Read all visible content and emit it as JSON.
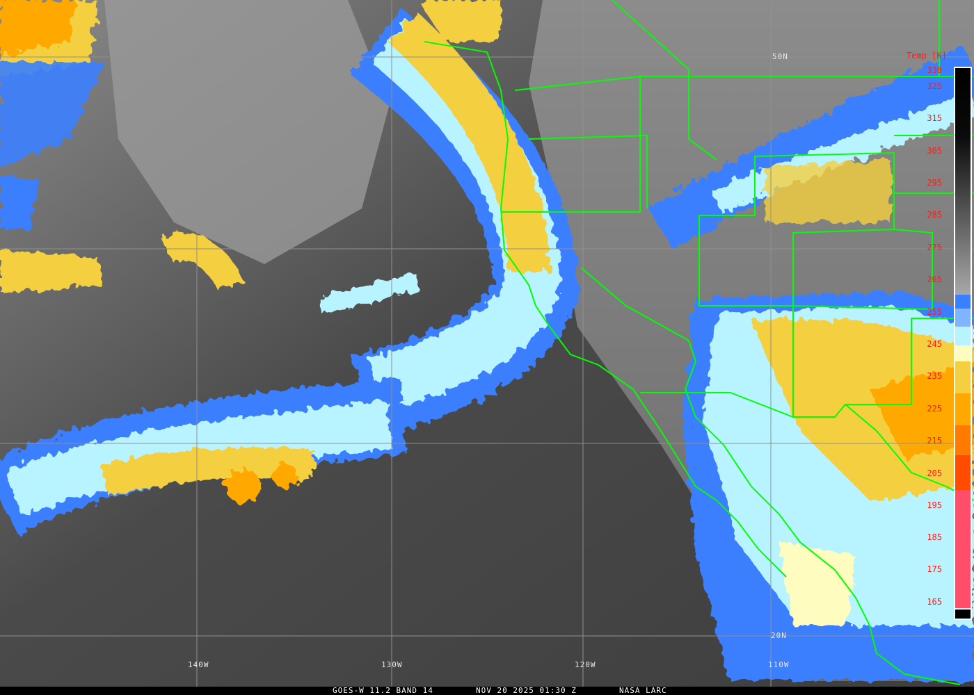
{
  "footer": {
    "satellite": "GOES-W 11.2 BAND 14",
    "datetime": "NOV 20 2025 01:30 Z",
    "credit": "NASA LARC"
  },
  "grid_labels": {
    "lat_50": "50N",
    "lat_20": "20N",
    "lon_140": "140W",
    "lon_130": "130W",
    "lon_120": "120W",
    "lon_110": "110W"
  },
  "colorbar": {
    "title": "Temp [K]",
    "ticks": [
      "330",
      "325",
      "315",
      "305",
      "295",
      "285",
      "275",
      "265",
      "255",
      "245",
      "235",
      "225",
      "215",
      "205",
      "195",
      "185",
      "175",
      "165"
    ],
    "colors": {
      "blue": "#3a7fff",
      "light_blue": "#80b4ff",
      "cyan": "#b8f4ff",
      "pale_yellow": "#fffcc0",
      "yellow": "#f4d040",
      "orange": "#ffa800",
      "dark_orange": "#ff7a00",
      "red_orange": "#ff4c00",
      "pink": "#ff4d6a"
    }
  },
  "map": {
    "border_color": "#00ff00",
    "grid_color": "#909090"
  }
}
